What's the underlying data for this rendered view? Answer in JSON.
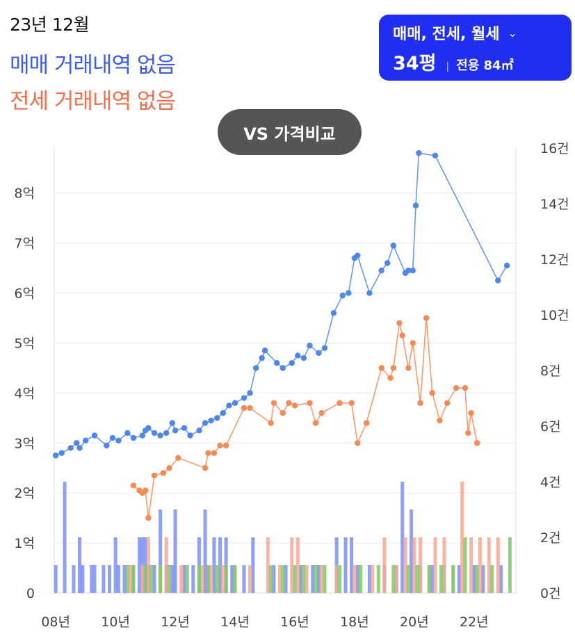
{
  "header": {
    "date": "23년 12월",
    "sale_status": "매매 거래내역 없음",
    "jeonse_status": "전세 거래내역 없음"
  },
  "selector": {
    "types": "매매, 전세, 월세",
    "pyeong": "34평",
    "area": "전용 84㎡"
  },
  "compare_button": "VS 가격비교",
  "colors": {
    "sale": "#4f86ec",
    "jeonse": "#f28b55",
    "sale_bar": "#7d8ff2",
    "jeonse_bar": "#f7a896",
    "wolse_bar": "#7ecb63",
    "accent": "#1f2ef0"
  },
  "chart_data": {
    "type": "line",
    "x_ticks": [
      "08년",
      "10년",
      "12년",
      "14년",
      "16년",
      "18년",
      "20년",
      "22년"
    ],
    "y_left_ticks": [
      "0",
      "1억",
      "2억",
      "3억",
      "4억",
      "5억",
      "6억",
      "7억",
      "8억"
    ],
    "y_right_ticks": [
      "0건",
      "2건",
      "4건",
      "6건",
      "8건",
      "10건",
      "12건",
      "14건",
      "16건"
    ],
    "ylim_left": [
      0,
      8.9
    ],
    "ylim_right": [
      0,
      16
    ],
    "series": [
      {
        "name": "매매",
        "axis": "left",
        "points": [
          [
            2008.0,
            2.75
          ],
          [
            2008.2,
            2.8
          ],
          [
            2008.5,
            2.9
          ],
          [
            2008.7,
            3.0
          ],
          [
            2008.8,
            2.9
          ],
          [
            2009.0,
            3.05
          ],
          [
            2009.3,
            3.15
          ],
          [
            2009.7,
            2.95
          ],
          [
            2009.9,
            3.1
          ],
          [
            2010.1,
            3.05
          ],
          [
            2010.4,
            3.2
          ],
          [
            2010.6,
            3.1
          ],
          [
            2010.9,
            3.15
          ],
          [
            2011.0,
            3.25
          ],
          [
            2011.1,
            3.3
          ],
          [
            2011.3,
            3.2
          ],
          [
            2011.5,
            3.15
          ],
          [
            2011.7,
            3.2
          ],
          [
            2011.9,
            3.4
          ],
          [
            2012.0,
            3.25
          ],
          [
            2012.3,
            3.3
          ],
          [
            2012.5,
            3.15
          ],
          [
            2012.8,
            3.25
          ],
          [
            2013.0,
            3.4
          ],
          [
            2013.2,
            3.45
          ],
          [
            2013.4,
            3.5
          ],
          [
            2013.6,
            3.6
          ],
          [
            2013.8,
            3.75
          ],
          [
            2014.0,
            3.8
          ],
          [
            2014.3,
            3.9
          ],
          [
            2014.5,
            4.0
          ],
          [
            2014.7,
            4.5
          ],
          [
            2014.9,
            4.7
          ],
          [
            2015.0,
            4.85
          ],
          [
            2015.4,
            4.6
          ],
          [
            2015.6,
            4.5
          ],
          [
            2015.9,
            4.6
          ],
          [
            2016.1,
            4.75
          ],
          [
            2016.3,
            4.7
          ],
          [
            2016.5,
            4.95
          ],
          [
            2016.8,
            4.8
          ],
          [
            2017.0,
            4.9
          ],
          [
            2017.3,
            5.6
          ],
          [
            2017.6,
            5.95
          ],
          [
            2017.8,
            6.0
          ],
          [
            2018.0,
            6.7
          ],
          [
            2018.1,
            6.75
          ],
          [
            2018.5,
            6.0
          ],
          [
            2018.9,
            6.45
          ],
          [
            2019.1,
            6.6
          ],
          [
            2019.3,
            6.95
          ],
          [
            2019.7,
            6.4
          ],
          [
            2019.8,
            6.45
          ],
          [
            2019.95,
            6.45
          ],
          [
            2020.05,
            7.75
          ],
          [
            2020.15,
            8.8
          ],
          [
            2020.7,
            8.75
          ],
          [
            2022.8,
            6.25
          ],
          [
            2023.1,
            6.55
          ]
        ]
      },
      {
        "name": "전세",
        "axis": "left",
        "points": [
          [
            2010.6,
            2.15
          ],
          [
            2010.8,
            2.05
          ],
          [
            2010.9,
            2.0
          ],
          [
            2011.0,
            2.05
          ],
          [
            2011.1,
            1.5
          ],
          [
            2011.3,
            2.35
          ],
          [
            2011.6,
            2.4
          ],
          [
            2011.8,
            2.5
          ],
          [
            2012.1,
            2.7
          ],
          [
            2013.0,
            2.5
          ],
          [
            2013.1,
            2.8
          ],
          [
            2013.3,
            2.8
          ],
          [
            2013.5,
            2.95
          ],
          [
            2013.7,
            2.95
          ],
          [
            2014.3,
            3.7
          ],
          [
            2014.5,
            3.7
          ],
          [
            2015.2,
            3.4
          ],
          [
            2015.3,
            3.8
          ],
          [
            2015.6,
            3.6
          ],
          [
            2015.8,
            3.8
          ],
          [
            2016.0,
            3.75
          ],
          [
            2016.5,
            3.8
          ],
          [
            2016.7,
            3.4
          ],
          [
            2016.9,
            3.6
          ],
          [
            2017.5,
            3.8
          ],
          [
            2017.9,
            3.8
          ],
          [
            2018.1,
            3.0
          ],
          [
            2018.4,
            3.4
          ],
          [
            2018.9,
            4.5
          ],
          [
            2019.2,
            4.3
          ],
          [
            2019.3,
            4.5
          ],
          [
            2019.5,
            5.4
          ],
          [
            2019.6,
            5.15
          ],
          [
            2019.8,
            4.5
          ],
          [
            2019.95,
            5.0
          ],
          [
            2020.2,
            3.8
          ],
          [
            2020.4,
            5.5
          ],
          [
            2020.6,
            4.0
          ],
          [
            2020.85,
            3.45
          ],
          [
            2021.1,
            3.8
          ],
          [
            2021.4,
            4.1
          ],
          [
            2021.7,
            4.1
          ],
          [
            2021.8,
            3.2
          ],
          [
            2021.9,
            3.6
          ],
          [
            2022.1,
            3.0
          ]
        ]
      }
    ],
    "bars": [
      {
        "name": "매매 거래량",
        "axis": "right",
        "points": [
          [
            2008.0,
            1
          ],
          [
            2008.3,
            4
          ],
          [
            2008.6,
            1
          ],
          [
            2008.8,
            2
          ],
          [
            2008.9,
            1
          ],
          [
            2009.2,
            1
          ],
          [
            2009.3,
            1
          ],
          [
            2009.6,
            1
          ],
          [
            2009.8,
            1
          ],
          [
            2010.0,
            2
          ],
          [
            2010.1,
            1
          ],
          [
            2010.3,
            1
          ],
          [
            2010.6,
            1
          ],
          [
            2010.8,
            2
          ],
          [
            2010.9,
            2
          ],
          [
            2011.0,
            2
          ],
          [
            2011.1,
            1
          ],
          [
            2011.3,
            1
          ],
          [
            2011.5,
            3
          ],
          [
            2011.7,
            1
          ],
          [
            2011.9,
            1
          ],
          [
            2012.0,
            3
          ],
          [
            2012.3,
            1
          ],
          [
            2012.6,
            1
          ],
          [
            2012.8,
            2
          ],
          [
            2013.0,
            3
          ],
          [
            2013.1,
            1
          ],
          [
            2013.3,
            2
          ],
          [
            2013.5,
            2
          ],
          [
            2013.7,
            2
          ],
          [
            2013.9,
            1
          ],
          [
            2014.3,
            1
          ],
          [
            2014.6,
            2
          ],
          [
            2015.3,
            1
          ],
          [
            2015.7,
            1
          ],
          [
            2016.2,
            1
          ],
          [
            2016.6,
            1
          ],
          [
            2016.8,
            1
          ],
          [
            2017.4,
            2
          ],
          [
            2017.7,
            2
          ],
          [
            2017.9,
            2
          ],
          [
            2018.1,
            1
          ],
          [
            2018.5,
            1
          ],
          [
            2019.0,
            1
          ],
          [
            2019.4,
            1
          ],
          [
            2019.6,
            4
          ],
          [
            2019.9,
            3
          ],
          [
            2020.2,
            1
          ],
          [
            2020.6,
            1
          ],
          [
            2021.0,
            1
          ],
          [
            2021.5,
            1
          ],
          [
            2022.0,
            1
          ],
          [
            2022.3,
            1
          ],
          [
            2022.9,
            1
          ]
        ]
      },
      {
        "name": "전세 거래량",
        "axis": "right",
        "points": [
          [
            2010.5,
            1
          ],
          [
            2010.9,
            1
          ],
          [
            2011.1,
            2
          ],
          [
            2011.5,
            1
          ],
          [
            2011.7,
            2
          ],
          [
            2012.2,
            1
          ],
          [
            2012.9,
            1
          ],
          [
            2013.2,
            1
          ],
          [
            2013.6,
            1
          ],
          [
            2014.0,
            1
          ],
          [
            2014.5,
            1
          ],
          [
            2015.1,
            2
          ],
          [
            2015.5,
            1
          ],
          [
            2015.9,
            2
          ],
          [
            2016.1,
            2
          ],
          [
            2016.4,
            1
          ],
          [
            2016.9,
            1
          ],
          [
            2017.4,
            1
          ],
          [
            2018.0,
            1
          ],
          [
            2018.6,
            1
          ],
          [
            2019.0,
            2
          ],
          [
            2019.4,
            1
          ],
          [
            2019.7,
            2
          ],
          [
            2020.0,
            2
          ],
          [
            2020.2,
            2
          ],
          [
            2020.5,
            1
          ],
          [
            2020.7,
            2
          ],
          [
            2021.0,
            2
          ],
          [
            2021.3,
            1
          ],
          [
            2021.6,
            4
          ],
          [
            2021.9,
            2
          ],
          [
            2022.2,
            2
          ],
          [
            2022.5,
            2
          ],
          [
            2022.8,
            2
          ]
        ]
      },
      {
        "name": "월세 거래량",
        "axis": "right",
        "points": [
          [
            2010.4,
            1
          ],
          [
            2010.6,
            1
          ],
          [
            2011.0,
            1
          ],
          [
            2011.2,
            1
          ],
          [
            2011.5,
            1
          ],
          [
            2011.8,
            1
          ],
          [
            2012.4,
            1
          ],
          [
            2012.8,
            1
          ],
          [
            2013.1,
            1
          ],
          [
            2013.4,
            1
          ],
          [
            2013.7,
            1
          ],
          [
            2014.0,
            1
          ],
          [
            2015.2,
            1
          ],
          [
            2015.6,
            1
          ],
          [
            2016.0,
            1
          ],
          [
            2016.3,
            1
          ],
          [
            2016.7,
            1
          ],
          [
            2017.0,
            1
          ],
          [
            2017.5,
            1
          ],
          [
            2018.2,
            1
          ],
          [
            2018.8,
            1
          ],
          [
            2019.3,
            1
          ],
          [
            2019.8,
            1
          ],
          [
            2020.1,
            1
          ],
          [
            2020.5,
            1
          ],
          [
            2020.9,
            1
          ],
          [
            2021.3,
            1
          ],
          [
            2021.7,
            2
          ],
          [
            2022.1,
            1
          ],
          [
            2022.6,
            1
          ],
          [
            2023.2,
            2
          ]
        ]
      }
    ]
  }
}
